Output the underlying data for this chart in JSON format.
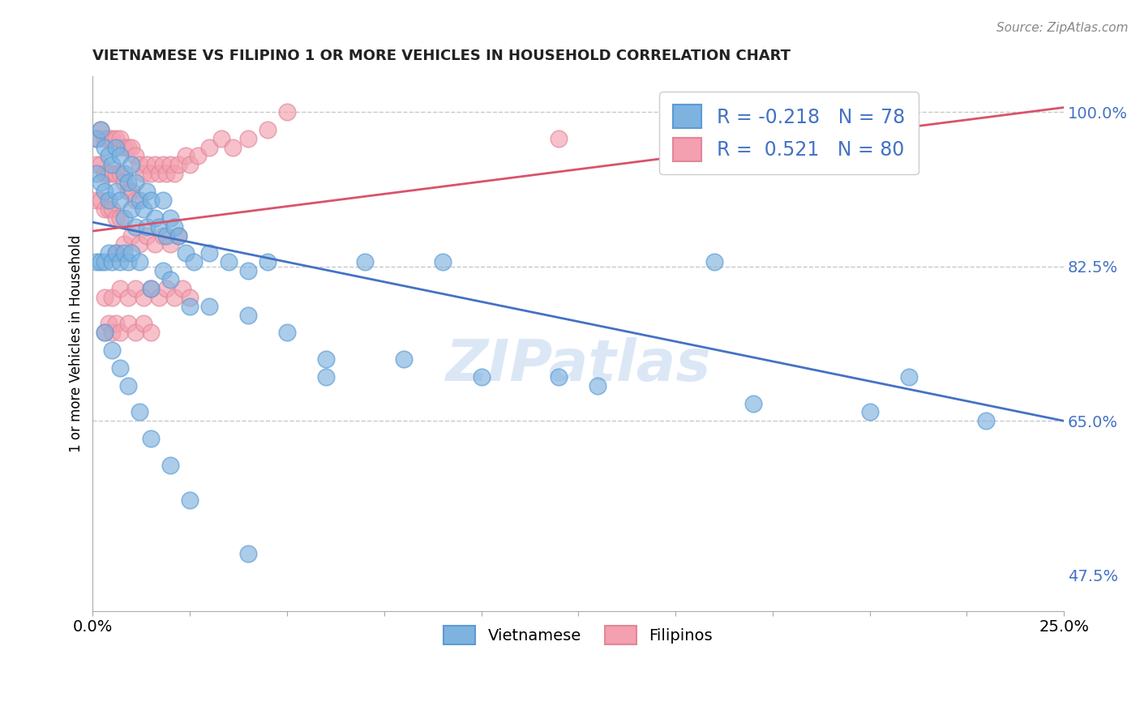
{
  "title": "VIETNAMESE VS FILIPINO 1 OR MORE VEHICLES IN HOUSEHOLD CORRELATION CHART",
  "source": "Source: ZipAtlas.com",
  "ylabel": "1 or more Vehicles in Household",
  "xlabel_legend_viet": "Vietnamese",
  "xlabel_legend_fil": "Filipinos",
  "xmin": 0.0,
  "xmax": 0.25,
  "ymin": 0.435,
  "ymax": 1.04,
  "color_viet": "#7eb3e0",
  "color_fil": "#f4a0b0",
  "color_edge_viet": "#5b9bd5",
  "color_edge_fil": "#e08898",
  "color_line_viet": "#4472c4",
  "color_line_fil": "#d9536a",
  "R_viet": -0.218,
  "N_viet": 78,
  "R_fil": 0.521,
  "N_fil": 80,
  "ytick_label_color": "#4472c4",
  "grid_color": "#c8c8c8",
  "viet_x": [
    0.001,
    0.001,
    0.002,
    0.002,
    0.003,
    0.003,
    0.004,
    0.004,
    0.005,
    0.006,
    0.006,
    0.007,
    0.007,
    0.008,
    0.008,
    0.009,
    0.01,
    0.01,
    0.011,
    0.011,
    0.012,
    0.013,
    0.014,
    0.014,
    0.015,
    0.016,
    0.017,
    0.018,
    0.019,
    0.02,
    0.021,
    0.022,
    0.024,
    0.026,
    0.03,
    0.035,
    0.04,
    0.045,
    0.05,
    0.06,
    0.07,
    0.09,
    0.12,
    0.16,
    0.21,
    0.001,
    0.002,
    0.003,
    0.004,
    0.005,
    0.006,
    0.007,
    0.008,
    0.009,
    0.01,
    0.012,
    0.015,
    0.018,
    0.02,
    0.025,
    0.03,
    0.04,
    0.06,
    0.08,
    0.1,
    0.13,
    0.17,
    0.2,
    0.23,
    0.003,
    0.005,
    0.007,
    0.009,
    0.012,
    0.015,
    0.02,
    0.025,
    0.04
  ],
  "viet_y": [
    0.97,
    0.93,
    0.98,
    0.92,
    0.96,
    0.91,
    0.95,
    0.9,
    0.94,
    0.96,
    0.91,
    0.95,
    0.9,
    0.93,
    0.88,
    0.92,
    0.94,
    0.89,
    0.92,
    0.87,
    0.9,
    0.89,
    0.91,
    0.87,
    0.9,
    0.88,
    0.87,
    0.9,
    0.86,
    0.88,
    0.87,
    0.86,
    0.84,
    0.83,
    0.84,
    0.83,
    0.82,
    0.83,
    0.75,
    0.7,
    0.83,
    0.83,
    0.7,
    0.83,
    0.7,
    0.83,
    0.83,
    0.83,
    0.84,
    0.83,
    0.84,
    0.83,
    0.84,
    0.83,
    0.84,
    0.83,
    0.8,
    0.82,
    0.81,
    0.78,
    0.78,
    0.77,
    0.72,
    0.72,
    0.7,
    0.69,
    0.67,
    0.66,
    0.65,
    0.75,
    0.73,
    0.71,
    0.69,
    0.66,
    0.63,
    0.6,
    0.56,
    0.5
  ],
  "fil_x": [
    0.001,
    0.001,
    0.001,
    0.002,
    0.002,
    0.002,
    0.003,
    0.003,
    0.003,
    0.004,
    0.004,
    0.004,
    0.005,
    0.005,
    0.005,
    0.006,
    0.006,
    0.006,
    0.007,
    0.007,
    0.007,
    0.008,
    0.008,
    0.009,
    0.009,
    0.01,
    0.01,
    0.011,
    0.011,
    0.012,
    0.013,
    0.014,
    0.015,
    0.016,
    0.017,
    0.018,
    0.019,
    0.02,
    0.021,
    0.022,
    0.024,
    0.025,
    0.027,
    0.03,
    0.033,
    0.036,
    0.04,
    0.045,
    0.05,
    0.006,
    0.008,
    0.01,
    0.012,
    0.014,
    0.016,
    0.018,
    0.02,
    0.022,
    0.003,
    0.005,
    0.007,
    0.009,
    0.011,
    0.013,
    0.015,
    0.017,
    0.019,
    0.021,
    0.023,
    0.025,
    0.003,
    0.004,
    0.005,
    0.006,
    0.007,
    0.009,
    0.011,
    0.013,
    0.015,
    0.12
  ],
  "fil_y": [
    0.97,
    0.94,
    0.9,
    0.98,
    0.94,
    0.9,
    0.97,
    0.93,
    0.89,
    0.97,
    0.93,
    0.89,
    0.97,
    0.93,
    0.89,
    0.97,
    0.93,
    0.88,
    0.97,
    0.93,
    0.88,
    0.96,
    0.92,
    0.96,
    0.91,
    0.96,
    0.91,
    0.95,
    0.9,
    0.94,
    0.93,
    0.94,
    0.93,
    0.94,
    0.93,
    0.94,
    0.93,
    0.94,
    0.93,
    0.94,
    0.95,
    0.94,
    0.95,
    0.96,
    0.97,
    0.96,
    0.97,
    0.98,
    1.0,
    0.84,
    0.85,
    0.86,
    0.85,
    0.86,
    0.85,
    0.86,
    0.85,
    0.86,
    0.79,
    0.79,
    0.8,
    0.79,
    0.8,
    0.79,
    0.8,
    0.79,
    0.8,
    0.79,
    0.8,
    0.79,
    0.75,
    0.76,
    0.75,
    0.76,
    0.75,
    0.76,
    0.75,
    0.76,
    0.75,
    0.97
  ]
}
